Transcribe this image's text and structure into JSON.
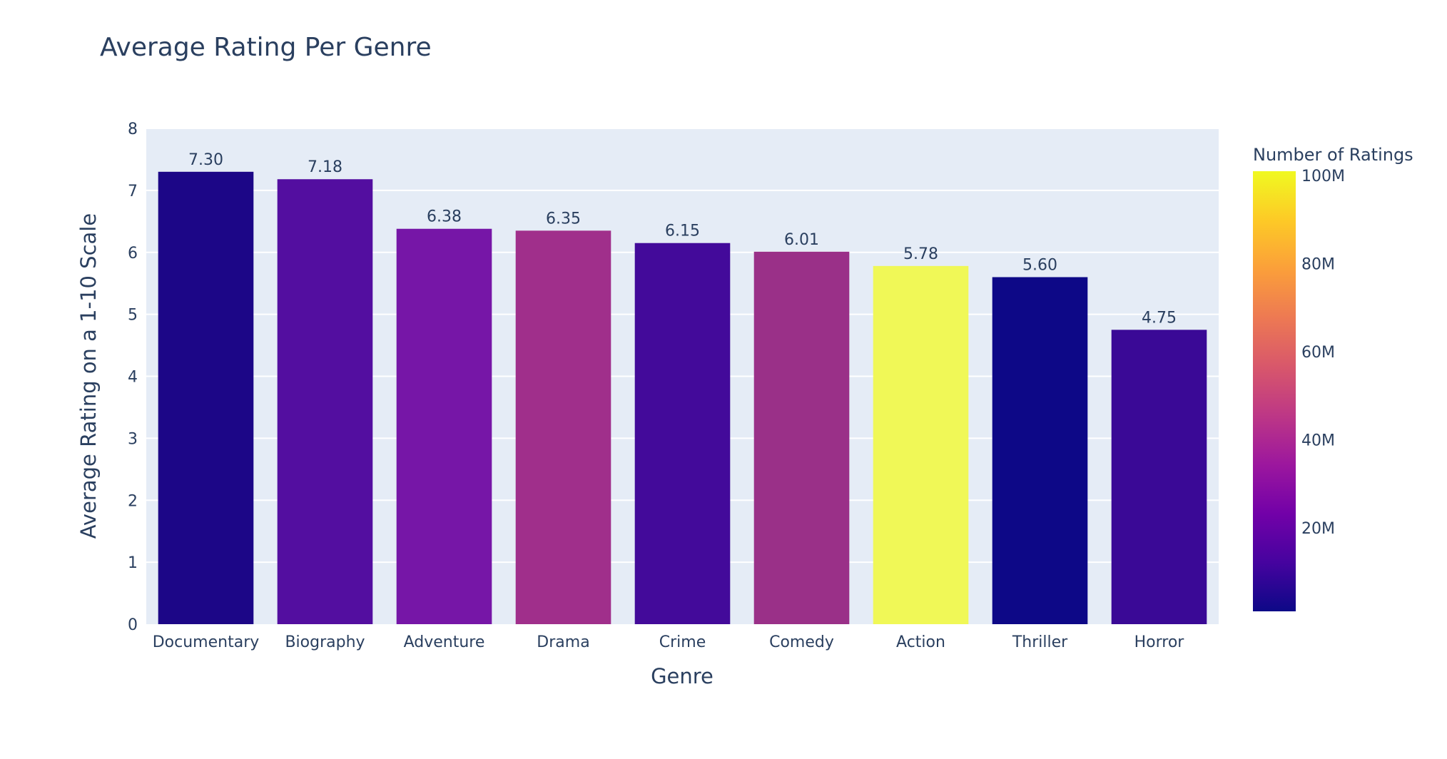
{
  "chart_data": {
    "type": "bar",
    "title": "Average Rating Per Genre",
    "xlabel": "Genre",
    "ylabel": "Average Rating on a 1-10 Scale",
    "categories": [
      "Documentary",
      "Biography",
      "Adventure",
      "Drama",
      "Crime",
      "Comedy",
      "Action",
      "Thriller",
      "Horror"
    ],
    "values": [
      7.3,
      7.18,
      6.38,
      6.35,
      6.15,
      6.01,
      5.78,
      5.6,
      4.75
    ],
    "value_labels": [
      "7.30",
      "7.18",
      "6.38",
      "6.35",
      "6.15",
      "6.01",
      "5.78",
      "5.60",
      "4.75"
    ],
    "number_of_ratings": [
      5000000,
      15000000,
      22000000,
      35000000,
      10000000,
      36000000,
      100000000,
      1000000,
      12000000
    ],
    "bar_colors": [
      "#1c0687",
      "#530ea0",
      "#7616a7",
      "#a02f8b",
      "#430a9a",
      "#9a3088",
      "#f0f857",
      "#0d0887",
      "#3a0996"
    ],
    "ylim": [
      0,
      8
    ],
    "y_ticks": [
      "0",
      "1",
      "2",
      "3",
      "4",
      "5",
      "6",
      "7",
      "8"
    ],
    "grid": true,
    "colorbar": {
      "title": "Number of Ratings",
      "tick_labels": [
        "20M",
        "40M",
        "60M",
        "80M",
        "100M"
      ],
      "tick_values": [
        20000000,
        40000000,
        60000000,
        80000000,
        100000000
      ],
      "range": [
        1000000,
        101000000
      ],
      "colorscale": [
        "#0d0887",
        "#46039f",
        "#7201a8",
        "#9c179e",
        "#bd3786",
        "#d8576b",
        "#ed7953",
        "#fb9f3a",
        "#fdca26",
        "#f0f921"
      ]
    },
    "plot_background": "#e5ecf6",
    "text_color": "#2a3f5f"
  }
}
